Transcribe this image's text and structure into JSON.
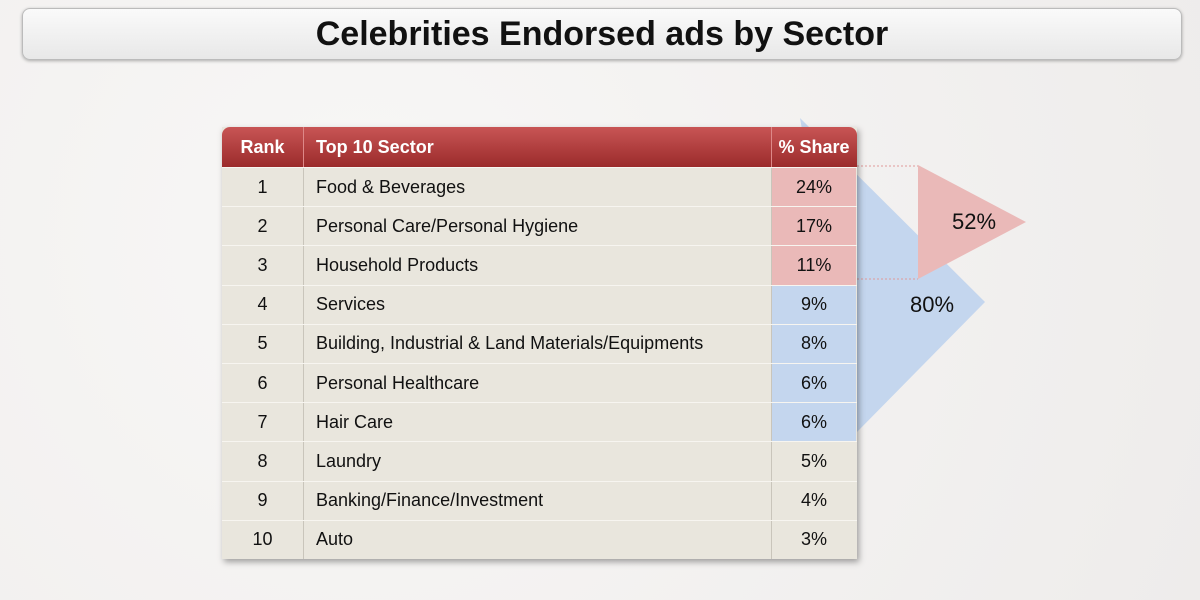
{
  "title": "Celebrities Endorsed ads by Sector",
  "chart_data": {
    "type": "table",
    "title": "Celebrities Endorsed ads by Sector",
    "columns": [
      "Rank",
      "Top 10 Sector",
      "% Share"
    ],
    "rows": [
      {
        "rank": "1",
        "sector": "Food & Beverages",
        "share": "24%",
        "group": "top3"
      },
      {
        "rank": "2",
        "sector": "Personal Care/Personal Hygiene",
        "share": "17%",
        "group": "top3"
      },
      {
        "rank": "3",
        "sector": "Household Products",
        "share": "11%",
        "group": "top3"
      },
      {
        "rank": "4",
        "sector": "Services",
        "share": "9%",
        "group": "top7"
      },
      {
        "rank": "5",
        "sector": "Building, Industrial & Land Materials/Equipments",
        "share": "8%",
        "group": "top7"
      },
      {
        "rank": "6",
        "sector": "Personal Healthcare",
        "share": "6%",
        "group": "top7"
      },
      {
        "rank": "7",
        "sector": "Hair Care",
        "share": "6%",
        "group": "top7"
      },
      {
        "rank": "8",
        "sector": "Laundry",
        "share": "5%",
        "group": "none"
      },
      {
        "rank": "9",
        "sector": "Banking/Finance/Investment",
        "share": "4%",
        "group": "none"
      },
      {
        "rank": "10",
        "sector": "Auto",
        "share": "3%",
        "group": "none"
      }
    ],
    "callouts": {
      "top3": "52%",
      "top7": "80%"
    },
    "colors": {
      "header": "#a83636",
      "top3": "#eab9b8",
      "top7": "#c4d6ee"
    }
  }
}
